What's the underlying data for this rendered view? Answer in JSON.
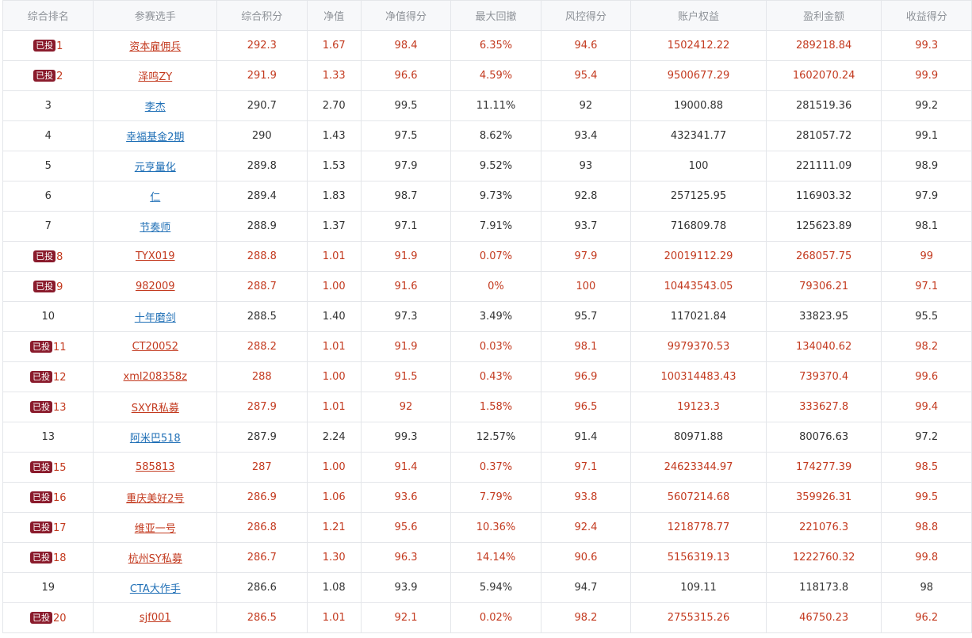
{
  "colors": {
    "invested_text": "#c33a1f",
    "normal_text": "#333333",
    "link_blue": "#1f6fb6",
    "badge_bg": "#8a1b2c",
    "header_bg": "#f7f8fa"
  },
  "headers": [
    "综合排名",
    "参赛选手",
    "综合积分",
    "净值",
    "净值得分",
    "最大回撤",
    "风控得分",
    "账户权益",
    "盈利金额",
    "收益得分"
  ],
  "badge_label": "已投",
  "rows": [
    {
      "invested": true,
      "rank": "1",
      "name": "资本雇佣兵",
      "score": "292.3",
      "nav": "1.67",
      "nav_score": "98.4",
      "max_drawdown": "6.35%",
      "risk_score": "94.6",
      "equity": "1502412.22",
      "profit": "289218.84",
      "return_score": "99.3"
    },
    {
      "invested": true,
      "rank": "2",
      "name": "泽鸣ZY",
      "score": "291.9",
      "nav": "1.33",
      "nav_score": "96.6",
      "max_drawdown": "4.59%",
      "risk_score": "95.4",
      "equity": "9500677.29",
      "profit": "1602070.24",
      "return_score": "99.9"
    },
    {
      "invested": false,
      "rank": "3",
      "name": "李杰",
      "score": "290.7",
      "nav": "2.70",
      "nav_score": "99.5",
      "max_drawdown": "11.11%",
      "risk_score": "92",
      "equity": "19000.88",
      "profit": "281519.36",
      "return_score": "99.2"
    },
    {
      "invested": false,
      "rank": "4",
      "name": "幸福基金2期",
      "score": "290",
      "nav": "1.43",
      "nav_score": "97.5",
      "max_drawdown": "8.62%",
      "risk_score": "93.4",
      "equity": "432341.77",
      "profit": "281057.72",
      "return_score": "99.1"
    },
    {
      "invested": false,
      "rank": "5",
      "name": "元亨量化",
      "score": "289.8",
      "nav": "1.53",
      "nav_score": "97.9",
      "max_drawdown": "9.52%",
      "risk_score": "93",
      "equity": "100",
      "profit": "221111.09",
      "return_score": "98.9"
    },
    {
      "invested": false,
      "rank": "6",
      "name": "仁",
      "score": "289.4",
      "nav": "1.83",
      "nav_score": "98.7",
      "max_drawdown": "9.73%",
      "risk_score": "92.8",
      "equity": "257125.95",
      "profit": "116903.32",
      "return_score": "97.9"
    },
    {
      "invested": false,
      "rank": "7",
      "name": "节奏师",
      "score": "288.9",
      "nav": "1.37",
      "nav_score": "97.1",
      "max_drawdown": "7.91%",
      "risk_score": "93.7",
      "equity": "716809.78",
      "profit": "125623.89",
      "return_score": "98.1"
    },
    {
      "invested": true,
      "rank": "8",
      "name": "TYX019",
      "score": "288.8",
      "nav": "1.01",
      "nav_score": "91.9",
      "max_drawdown": "0.07%",
      "risk_score": "97.9",
      "equity": "20019112.29",
      "profit": "268057.75",
      "return_score": "99"
    },
    {
      "invested": true,
      "rank": "9",
      "name": "982009",
      "score": "288.7",
      "nav": "1.00",
      "nav_score": "91.6",
      "max_drawdown": "0%",
      "risk_score": "100",
      "equity": "10443543.05",
      "profit": "79306.21",
      "return_score": "97.1"
    },
    {
      "invested": false,
      "rank": "10",
      "name": "十年磨剑",
      "score": "288.5",
      "nav": "1.40",
      "nav_score": "97.3",
      "max_drawdown": "3.49%",
      "risk_score": "95.7",
      "equity": "117021.84",
      "profit": "33823.95",
      "return_score": "95.5"
    },
    {
      "invested": true,
      "rank": "11",
      "name": "CT20052",
      "score": "288.2",
      "nav": "1.01",
      "nav_score": "91.9",
      "max_drawdown": "0.03%",
      "risk_score": "98.1",
      "equity": "9979370.53",
      "profit": "134040.62",
      "return_score": "98.2"
    },
    {
      "invested": true,
      "rank": "12",
      "name": "xml208358z",
      "score": "288",
      "nav": "1.00",
      "nav_score": "91.5",
      "max_drawdown": "0.43%",
      "risk_score": "96.9",
      "equity": "100314483.43",
      "profit": "739370.4",
      "return_score": "99.6"
    },
    {
      "invested": true,
      "rank": "13",
      "name": "SXYR私募",
      "score": "287.9",
      "nav": "1.01",
      "nav_score": "92",
      "max_drawdown": "1.58%",
      "risk_score": "96.5",
      "equity": "19123.3",
      "profit": "333627.8",
      "return_score": "99.4"
    },
    {
      "invested": false,
      "rank": "13",
      "name": "阿米巴518",
      "score": "287.9",
      "nav": "2.24",
      "nav_score": "99.3",
      "max_drawdown": "12.57%",
      "risk_score": "91.4",
      "equity": "80971.88",
      "profit": "80076.63",
      "return_score": "97.2"
    },
    {
      "invested": true,
      "rank": "15",
      "name": "585813",
      "score": "287",
      "nav": "1.00",
      "nav_score": "91.4",
      "max_drawdown": "0.37%",
      "risk_score": "97.1",
      "equity": "24623344.97",
      "profit": "174277.39",
      "return_score": "98.5"
    },
    {
      "invested": true,
      "rank": "16",
      "name": "重庆美好2号",
      "score": "286.9",
      "nav": "1.06",
      "nav_score": "93.6",
      "max_drawdown": "7.79%",
      "risk_score": "93.8",
      "equity": "5607214.68",
      "profit": "359926.31",
      "return_score": "99.5"
    },
    {
      "invested": true,
      "rank": "17",
      "name": "维亚一号",
      "score": "286.8",
      "nav": "1.21",
      "nav_score": "95.6",
      "max_drawdown": "10.36%",
      "risk_score": "92.4",
      "equity": "1218778.77",
      "profit": "221076.3",
      "return_score": "98.8"
    },
    {
      "invested": true,
      "rank": "18",
      "name": "杭州SY私募",
      "score": "286.7",
      "nav": "1.30",
      "nav_score": "96.3",
      "max_drawdown": "14.14%",
      "risk_score": "90.6",
      "equity": "5156319.13",
      "profit": "1222760.32",
      "return_score": "99.8"
    },
    {
      "invested": false,
      "rank": "19",
      "name": "CTA大作手",
      "score": "286.6",
      "nav": "1.08",
      "nav_score": "93.9",
      "max_drawdown": "5.94%",
      "risk_score": "94.7",
      "equity": "109.11",
      "profit": "118173.8",
      "return_score": "98"
    },
    {
      "invested": true,
      "rank": "20",
      "name": "sjf001",
      "score": "286.5",
      "nav": "1.01",
      "nav_score": "92.1",
      "max_drawdown": "0.02%",
      "risk_score": "98.2",
      "equity": "2755315.26",
      "profit": "46750.23",
      "return_score": "96.2"
    }
  ]
}
